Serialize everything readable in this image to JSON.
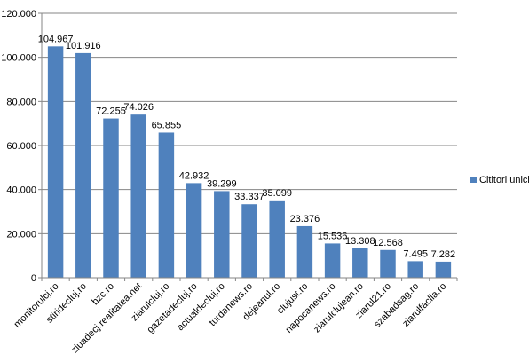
{
  "chart_data": {
    "type": "bar",
    "categories": [
      "monitorulcj.ro",
      "stiridecluj.ro",
      "bzc.ro",
      "ziuadecj.realitatea.net",
      "ziarulcluj.ro",
      "gazetadecluj.ro",
      "actualdecluj.ro",
      "turdanews.ro",
      "dejeanul.ro",
      "clujust.ro",
      "napocanews.ro",
      "ziarulclujean.ro",
      "ziarul21.ro",
      "szabadsag.ro",
      "ziarulfaclia.ro"
    ],
    "series": [
      {
        "name": "Cititori unici",
        "values": [
          104967,
          101916,
          72255,
          74026,
          65855,
          42932,
          39299,
          33337,
          35099,
          23376,
          15536,
          13308,
          12568,
          7495,
          7282
        ],
        "labels": [
          "104.967",
          "101.916",
          "72.255",
          "74.026",
          "65.855",
          "42.932",
          "39.299",
          "33.337",
          "35.099",
          "23.376",
          "15.536",
          "13.308",
          "12.568",
          "7.495",
          "7.282"
        ],
        "color": "#4f81bd"
      }
    ],
    "y_ticks": [
      0,
      20000,
      40000,
      60000,
      80000,
      100000,
      120000
    ],
    "y_tick_labels": [
      "0",
      "20.000",
      "40.000",
      "60.000",
      "80.000",
      "100.000",
      "120.000"
    ],
    "ylim": [
      0,
      120000
    ],
    "grid": true,
    "legend_position": "right"
  }
}
